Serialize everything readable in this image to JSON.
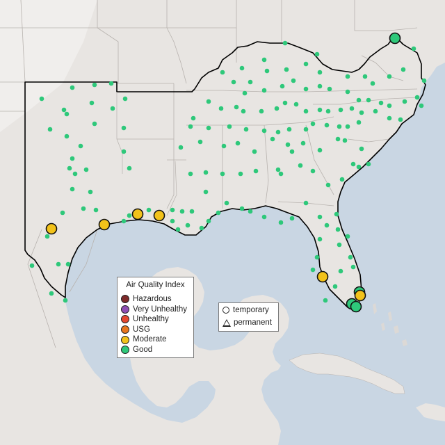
{
  "legend": {
    "title": "Air Quality Index",
    "categories": [
      {
        "label": "Hazardous",
        "color": "#7e2b2b"
      },
      {
        "label": "Very Unhealthy",
        "color": "#8f4fb4"
      },
      {
        "label": "Unhealthy",
        "color": "#e4472f"
      },
      {
        "label": "USG",
        "color": "#e8761e"
      },
      {
        "label": "Moderate",
        "color": "#f2c21a"
      },
      {
        "label": "Good",
        "color": "#2ec87a"
      }
    ]
  },
  "monitor_types": {
    "temporary": "temporary",
    "permanent": "permanent"
  },
  "colors": {
    "water": "#c9d6e3",
    "land": "#e8e5e2",
    "land_light": "#f0eeec",
    "region_outline": "#000000",
    "state_borders": "#b7b2ae"
  }
}
